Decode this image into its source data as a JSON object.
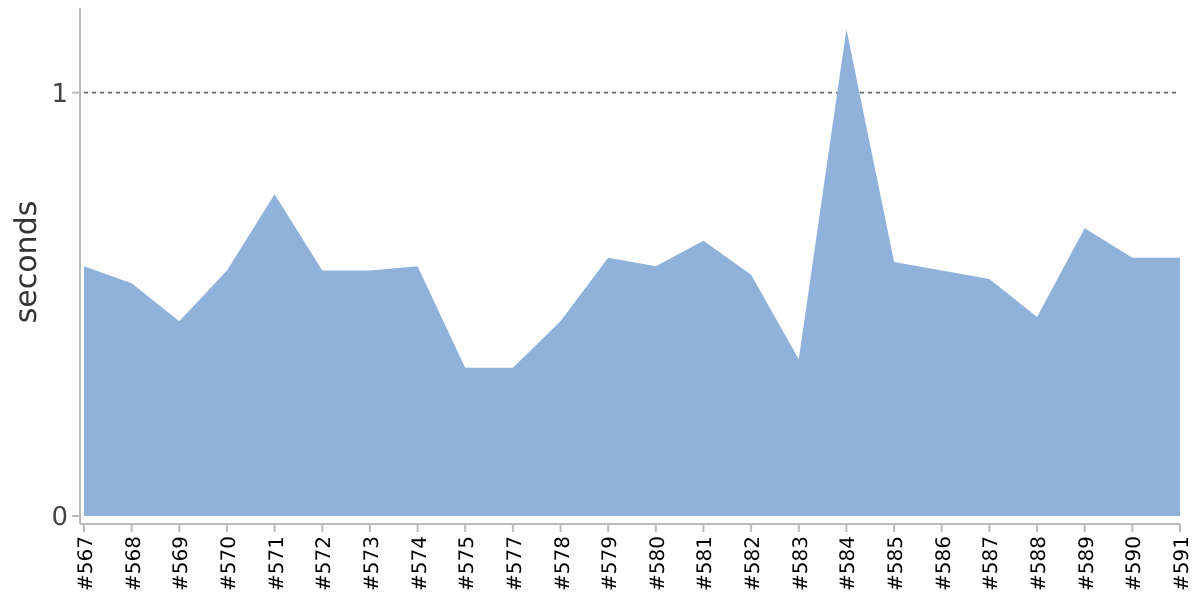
{
  "chart_data": {
    "type": "area",
    "ylabel": "seconds",
    "categories": [
      "#567",
      "#568",
      "#569",
      "#570",
      "#571",
      "#572",
      "#573",
      "#574",
      "#575",
      "#577",
      "#578",
      "#579",
      "#580",
      "#581",
      "#582",
      "#583",
      "#584",
      "#585",
      "#586",
      "#587",
      "#588",
      "#589",
      "#590",
      "#591"
    ],
    "values": [
      0.59,
      0.55,
      0.46,
      0.58,
      0.76,
      0.58,
      0.58,
      0.59,
      0.35,
      0.35,
      0.46,
      0.61,
      0.59,
      0.65,
      0.57,
      0.37,
      1.15,
      0.6,
      0.58,
      0.56,
      0.47,
      0.68,
      0.61,
      0.61
    ],
    "color": "#8fb1da",
    "ylim": [
      0,
      1.2
    ],
    "yticks": [
      0,
      1
    ],
    "grid": "y"
  }
}
